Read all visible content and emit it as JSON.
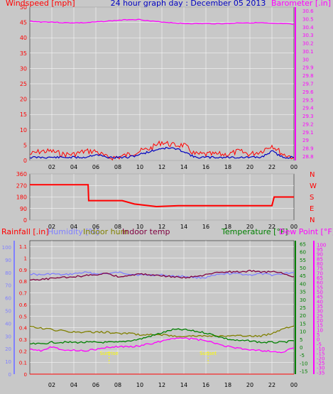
{
  "colors": {
    "wind": "#ff0000",
    "gust": "#ff0000",
    "avg_wind": "#0000c0",
    "pressure": "#ff00ff",
    "direction": "#ff0000",
    "rain": "#ff0000",
    "humidity": "#8080ff",
    "indoor_hum": "#808000",
    "indoor_temp": "#800040",
    "temperature": "#008000",
    "dew_point": "#ff00ff",
    "sunrise": "#ffff00",
    "grid": "#ffffff",
    "plot_bg": "#c8c8c8"
  },
  "chart_data": [
    {
      "type": "line",
      "title": "24 hour graph day : December 05 2013",
      "ylabel_left": "Windspeed [mph]",
      "ylabel_right": "Barometer [.in]",
      "x_ticks": [
        "02",
        "04",
        "06",
        "08",
        "10",
        "12",
        "14",
        "16",
        "18",
        "20",
        "22",
        "00"
      ],
      "x": [
        0,
        1,
        2,
        3,
        4,
        5,
        6,
        7,
        8,
        9,
        10,
        11,
        12,
        13,
        14,
        15,
        16,
        17,
        18,
        19,
        20,
        21,
        22,
        23,
        24
      ],
      "ylim_left": [
        0,
        50
      ],
      "yticks_left": [
        "0",
        "5",
        "10",
        "15",
        "20",
        "25",
        "30",
        "35",
        "40",
        "45",
        "50"
      ],
      "ylim_right": [
        28.8,
        30.6
      ],
      "yticks_right": [
        "28.8",
        "28.9",
        "29",
        "29.1",
        "29.2",
        "29.3",
        "29.4",
        "29.5",
        "29.6",
        "29.7",
        "29.8",
        "29.9",
        "30",
        "30.1",
        "30.2",
        "30.3",
        "30.4",
        "30.5",
        "30.6"
      ],
      "series": [
        {
          "name": "Windspeed [mph]",
          "axis": "left",
          "color_key": "wind",
          "values": [
            2,
            3,
            3,
            2,
            2,
            3,
            3,
            1,
            1,
            2,
            3,
            4,
            6,
            5,
            5,
            2,
            2,
            2,
            2,
            3,
            2,
            3,
            5,
            2,
            1
          ]
        },
        {
          "axis": "left",
          "color_key": "avg_wind",
          "values": [
            1,
            1,
            1,
            1,
            1,
            1,
            2,
            1,
            1,
            1,
            2,
            3,
            4,
            4,
            3,
            1,
            1,
            1,
            1,
            1,
            1,
            1,
            3,
            1,
            1
          ]
        },
        {
          "name": "Barometer [.in]",
          "axis": "right",
          "color_key": "pressure",
          "values": [
            30.47,
            30.46,
            30.46,
            30.45,
            30.45,
            30.45,
            30.46,
            30.47,
            30.48,
            30.49,
            30.49,
            30.47,
            30.46,
            30.45,
            30.44,
            30.44,
            30.44,
            30.44,
            30.44,
            30.45,
            30.45,
            30.45,
            30.44,
            30.44,
            30.43
          ]
        }
      ]
    },
    {
      "type": "line",
      "ylim": [
        0,
        360
      ],
      "yticks": [
        "0",
        "90",
        "180",
        "270",
        "360"
      ],
      "compass": [
        "N",
        "W",
        "S",
        "E",
        "N"
      ],
      "x_ticks": [
        "02",
        "04",
        "06",
        "08",
        "10",
        "12",
        "14",
        "16",
        "18",
        "20",
        "22",
        "00"
      ],
      "x": [
        0,
        5.3,
        5.35,
        8.4,
        9.5,
        11.5,
        13.5,
        16,
        20,
        22,
        22.2,
        24
      ],
      "series": [
        {
          "color_key": "direction",
          "values": [
            275,
            275,
            152,
            152,
            125,
            105,
            112,
            112,
            112,
            112,
            180,
            180
          ]
        }
      ]
    },
    {
      "type": "line",
      "ylabel_rain": "Rainfall [.in]",
      "ylabel_humidity": "Humidity [%]",
      "ylabel_indoor_hum": "Indoor hum",
      "ylabel_indoor_temp": "Indoor temp",
      "ylabel_temperature": "Temperature [°F]",
      "ylabel_dewpoint": "Dew Point [°F]",
      "yticks_rain": [
        "0",
        "0.1",
        "0.2",
        "0.3",
        "0.4",
        "0.5",
        "0.6",
        "0.7",
        "0.8",
        "0.9",
        "1",
        "1.1"
      ],
      "ylim_rain": [
        0,
        1.15
      ],
      "yticks_humidity": [
        "0",
        "10",
        "20",
        "30",
        "40",
        "50",
        "60",
        "70",
        "80",
        "90",
        "100"
      ],
      "ylim_humidity": [
        0,
        105
      ],
      "yticks_temp": [
        "-15",
        "-10",
        "-5",
        "0",
        "5",
        "10",
        "15",
        "20",
        "25",
        "30",
        "35",
        "40",
        "45",
        "50",
        "55",
        "60",
        "65"
      ],
      "ylim_temp": [
        -17,
        67
      ],
      "yticks_dew": [
        "-35",
        "-30",
        "-25",
        "-20",
        "-15",
        "-10",
        "-5",
        "0",
        "5",
        "10",
        "15",
        "20",
        "25",
        "30",
        "35",
        "40",
        "45",
        "50",
        "55",
        "60",
        "65",
        "70",
        "75",
        "80",
        "85",
        "90",
        "95",
        "100"
      ],
      "ylim_dew": [
        -37,
        104
      ],
      "x_ticks": [
        "02",
        "04",
        "06",
        "08",
        "10",
        "12",
        "14",
        "16",
        "18",
        "20",
        "22",
        "00"
      ],
      "x": [
        0,
        1,
        2,
        3,
        4,
        5,
        6,
        7,
        8,
        9,
        10,
        11,
        12,
        13,
        14,
        15,
        16,
        17,
        18,
        19,
        20,
        21,
        22,
        23,
        24
      ],
      "sun_markers": [
        {
          "x": 7.2,
          "label": "Sunrise"
        },
        {
          "x": 16.2,
          "label": "Sunset"
        }
      ],
      "series": [
        {
          "name": "Humidity [%]",
          "axis": "humidity",
          "color_key": "humidity",
          "values": [
            79,
            78,
            79,
            78,
            79,
            80,
            79,
            79,
            80,
            79,
            78,
            78,
            78,
            77,
            77,
            76,
            76,
            78,
            79,
            79,
            78,
            79,
            78,
            79,
            80
          ]
        },
        {
          "name": "Indoor hum",
          "axis": "humidity",
          "color_key": "indoor_hum",
          "values": [
            37,
            36,
            35,
            34,
            33,
            33,
            33,
            33,
            32,
            32,
            31,
            31,
            31,
            30,
            30,
            30,
            30,
            30,
            30,
            30,
            30,
            30,
            32,
            36,
            38
          ]
        },
        {
          "name": "Indoor temp",
          "axis": "dewpoint",
          "color_key": "indoor_temp",
          "values": [
            62,
            63,
            64,
            65,
            66,
            67,
            68,
            70,
            66,
            67,
            69,
            68,
            67,
            66,
            65,
            66,
            68,
            70,
            71,
            71,
            72,
            71,
            71,
            70,
            66
          ]
        },
        {
          "name": "Temperature [°F]",
          "axis": "temperature",
          "color_key": "temperature",
          "values": [
            2,
            2,
            3,
            3,
            3,
            3,
            3,
            3,
            3,
            4,
            5,
            7,
            9,
            11,
            11,
            10,
            9,
            7,
            5,
            4,
            4,
            3,
            3,
            3,
            4
          ]
        },
        {
          "name": "Dew Point [°F]",
          "axis": "dewpoint",
          "color_key": "dew_point",
          "values": [
            -10,
            -12,
            -8,
            -11,
            -12,
            -12,
            -11,
            -9,
            -8,
            -8,
            -7,
            -5,
            -2,
            1,
            1,
            0,
            -2,
            -5,
            -8,
            -10,
            -11,
            -12,
            -13,
            -14,
            -9
          ]
        },
        {
          "name": "Rainfall [.in]",
          "axis": "rain",
          "color_key": "rain",
          "values": [
            0,
            0,
            0,
            0,
            0,
            0,
            0,
            0,
            0,
            0,
            0,
            0,
            0,
            0,
            0,
            0,
            0,
            0,
            0,
            0,
            0,
            0,
            0,
            0,
            0
          ]
        }
      ]
    }
  ]
}
